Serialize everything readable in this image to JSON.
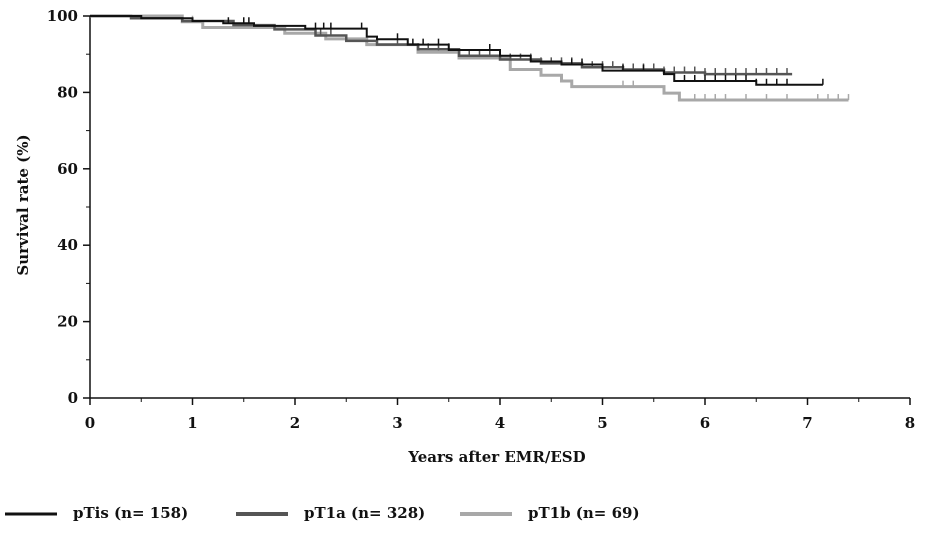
{
  "chart_data": {
    "type": "line",
    "title": "",
    "xlabel": "Years after EMR/ESD",
    "ylabel": "Survival rate (%)",
    "xlim": [
      0,
      8
    ],
    "ylim": [
      0,
      100
    ],
    "xticks": [
      "0",
      "1",
      "2",
      "3",
      "4",
      "5",
      "6",
      "7",
      "8"
    ],
    "yticks": [
      "0",
      "20",
      "40",
      "60",
      "80",
      "100"
    ],
    "grid": false,
    "legend_position": "bottom",
    "step": true,
    "series": [
      {
        "name": "pTis (n= 158)",
        "color": "#111111",
        "points": [
          [
            0,
            100
          ],
          [
            0.5,
            99.4
          ],
          [
            1.0,
            98.7
          ],
          [
            1.3,
            98.1
          ],
          [
            1.6,
            97.4
          ],
          [
            2.1,
            96.7
          ],
          [
            2.7,
            94.6
          ],
          [
            2.8,
            93.9
          ],
          [
            3.1,
            92.5
          ],
          [
            3.5,
            91.1
          ],
          [
            4.0,
            89.6
          ],
          [
            4.3,
            88.1
          ],
          [
            4.6,
            87.3
          ],
          [
            5.0,
            85.7
          ],
          [
            5.6,
            84.8
          ],
          [
            5.7,
            83.0
          ],
          [
            6.5,
            82.0
          ],
          [
            7.15,
            82.0
          ]
        ],
        "censor_x": [
          1.35,
          1.5,
          1.55,
          2.2,
          2.28,
          2.35,
          2.65,
          3.0,
          3.15,
          3.25,
          3.4,
          3.9,
          4.7,
          4.8,
          5.2,
          5.4,
          5.8,
          5.9,
          6.0,
          6.1,
          6.2,
          6.3,
          6.4,
          6.5,
          6.6,
          6.7,
          6.8,
          7.15
        ]
      },
      {
        "name": "pT1a (n= 328)",
        "color": "#555555",
        "points": [
          [
            0,
            100
          ],
          [
            0.4,
            99.4
          ],
          [
            0.9,
            98.7
          ],
          [
            1.4,
            97.6
          ],
          [
            1.8,
            96.5
          ],
          [
            2.2,
            94.9
          ],
          [
            2.5,
            93.5
          ],
          [
            2.8,
            92.5
          ],
          [
            3.2,
            91.3
          ],
          [
            3.6,
            89.6
          ],
          [
            4.0,
            88.6
          ],
          [
            4.4,
            87.6
          ],
          [
            4.8,
            86.6
          ],
          [
            5.2,
            86.0
          ],
          [
            5.6,
            85.2
          ],
          [
            6.0,
            84.8
          ],
          [
            6.85,
            84.8
          ]
        ],
        "censor_x": [
          2.2,
          2.25,
          2.35,
          3.0,
          3.1,
          3.2,
          3.3,
          3.4,
          3.5,
          3.6,
          3.7,
          3.8,
          3.9,
          4.0,
          4.1,
          4.2,
          4.3,
          4.4,
          4.5,
          4.6,
          4.7,
          4.8,
          4.9,
          5.0,
          5.1,
          5.2,
          5.3,
          5.4,
          5.5,
          5.6,
          5.7,
          5.8,
          5.9,
          6.0,
          6.1,
          6.2,
          6.3,
          6.4,
          6.5,
          6.6,
          6.7,
          6.8
        ]
      },
      {
        "name": "pT1b (n= 69)",
        "color": "#a8a8a8",
        "points": [
          [
            0,
            100
          ],
          [
            0.9,
            98.5
          ],
          [
            1.1,
            97.0
          ],
          [
            1.9,
            95.5
          ],
          [
            2.3,
            94.0
          ],
          [
            2.7,
            92.5
          ],
          [
            3.2,
            90.5
          ],
          [
            3.6,
            89.0
          ],
          [
            4.1,
            86.0
          ],
          [
            4.4,
            84.5
          ],
          [
            4.6,
            83.0
          ],
          [
            4.7,
            81.5
          ],
          [
            5.6,
            79.8
          ],
          [
            5.75,
            78.0
          ],
          [
            7.4,
            78.0
          ]
        ],
        "censor_x": [
          1.0,
          3.4,
          3.5,
          3.6,
          3.7,
          4.0,
          4.6,
          5.2,
          5.3,
          5.6,
          5.9,
          6.0,
          6.1,
          6.2,
          6.4,
          6.6,
          6.8,
          7.1,
          7.2,
          7.3,
          7.4
        ]
      }
    ]
  }
}
